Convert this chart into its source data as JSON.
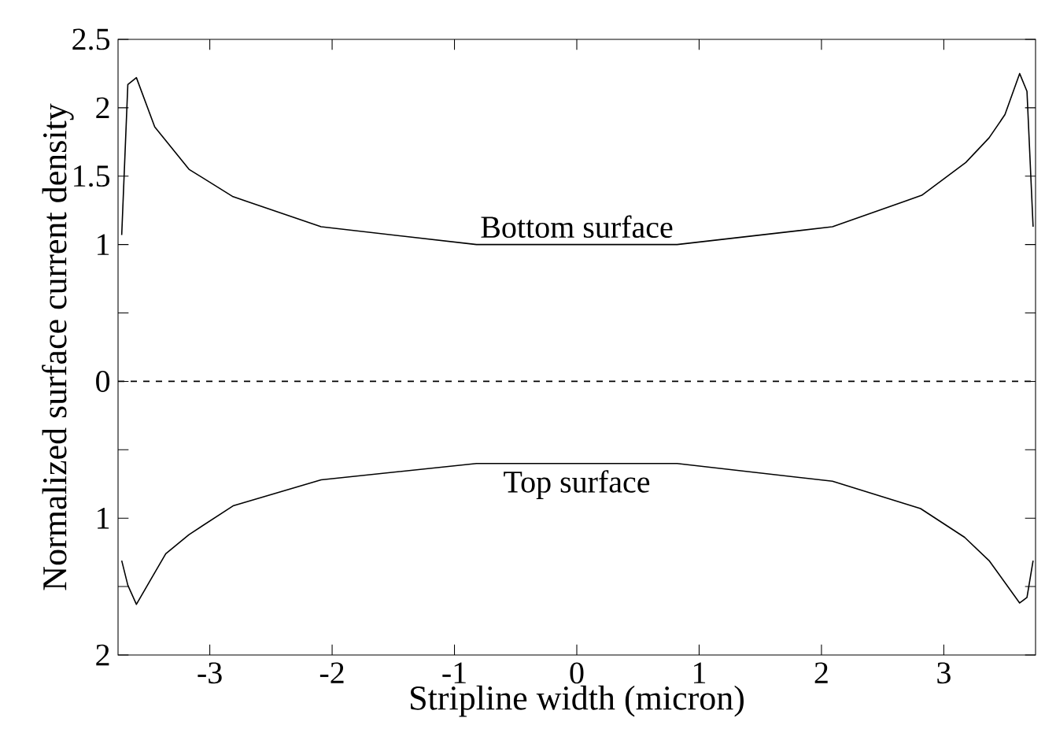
{
  "chart_data": {
    "type": "line",
    "xlabel": "Stripline width (micron)",
    "ylabel": "Normalized surface current density",
    "xlim": [
      -3.75,
      3.75
    ],
    "xticks": [
      -3,
      -2,
      -1,
      0,
      1,
      2,
      3
    ],
    "ylim": [
      -2,
      2.5
    ],
    "yticks": [
      {
        "value": -2,
        "label": "2"
      },
      {
        "value": -1.5,
        "label": null
      },
      {
        "value": -1,
        "label": "1"
      },
      {
        "value": -0.5,
        "label": null
      },
      0,
      {
        "value": 0.5,
        "label": null
      },
      1,
      1.5,
      2,
      2.5
    ],
    "series": [
      {
        "color": "#000000",
        "x": [
          -3.72,
          -3.67,
          -3.6,
          -3.45,
          -3.36,
          -3.17,
          -2.81,
          -2.09,
          -0.82,
          0.82,
          2.09,
          2.82,
          3.18,
          3.37,
          3.5,
          3.62,
          3.68,
          3.73
        ],
        "values": [
          1.07,
          2.17,
          2.22,
          1.86,
          1.76,
          1.55,
          1.35,
          1.13,
          1.0,
          1.0,
          1.13,
          1.36,
          1.6,
          1.78,
          1.95,
          2.25,
          2.12,
          1.13
        ]
      },
      {
        "color": "#000000",
        "x": [
          -3.72,
          -3.67,
          -3.6,
          -3.49,
          -3.36,
          -3.17,
          -2.81,
          -2.09,
          -0.82,
          0.82,
          2.09,
          2.81,
          3.17,
          3.37,
          3.62,
          3.68,
          3.73
        ],
        "values": [
          -1.31,
          -1.49,
          -1.63,
          -1.46,
          -1.26,
          -1.12,
          -0.91,
          -0.72,
          -0.6,
          -0.6,
          -0.73,
          -0.93,
          -1.14,
          -1.31,
          -1.62,
          -1.58,
          -1.31
        ]
      }
    ],
    "ref_lines": [
      {
        "axis": "y",
        "value": 0,
        "line_style": "dashed",
        "color": "#000000"
      }
    ],
    "annotations": [
      {
        "text": "Bottom surface",
        "x": 0,
        "y": 1.0
      },
      {
        "text": "Top surface",
        "x": 0,
        "y": -0.6
      }
    ]
  }
}
